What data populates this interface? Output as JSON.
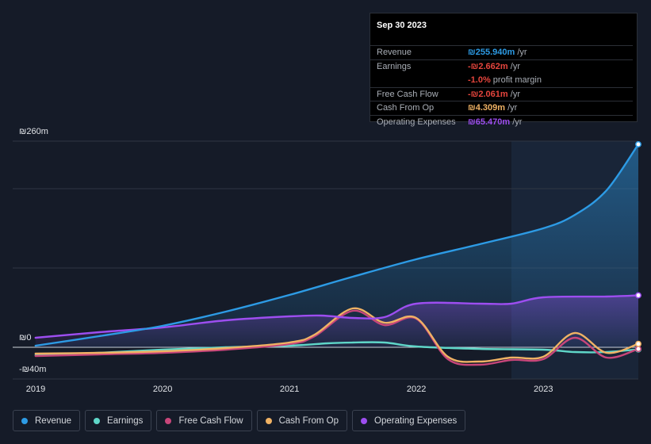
{
  "tooltip": {
    "date": "Sep 30 2023",
    "rows": [
      {
        "label": "Revenue",
        "value": "₪255.940m",
        "unit": " /yr",
        "color": "#2d9be5"
      },
      {
        "label": "Earnings",
        "value": "-₪2.662m",
        "unit": " /yr",
        "color": "#e5453d"
      },
      {
        "label": "",
        "value": "-1.0%",
        "unit": " profit margin",
        "color": "#e5453d"
      },
      {
        "label": "Free Cash Flow",
        "value": "-₪2.061m",
        "unit": " /yr",
        "color": "#e5453d"
      },
      {
        "label": "Cash From Op",
        "value": "₪4.309m",
        "unit": " /yr",
        "color": "#f0b264"
      },
      {
        "label": "Operating Expenses",
        "value": "₪65.470m",
        "unit": " /yr",
        "color": "#9d4ef0"
      }
    ]
  },
  "colors": {
    "background": "#151b28",
    "revenue": "#2d9be5",
    "earnings": "#5fd6c8",
    "free_cash_flow": "#c8467a",
    "cash_from_op": "#f0b264",
    "operating_expenses": "#9d4ef0"
  },
  "chart_data": {
    "type": "line",
    "y_tick_labels": [
      "₪260m",
      "₪0",
      "-₪40m"
    ],
    "ylim": [
      -40,
      260
    ],
    "x_tick_labels": [
      "2019",
      "2020",
      "2021",
      "2022",
      "2023"
    ],
    "x_tick_values": [
      2019.0,
      2020.0,
      2021.0,
      2022.0,
      2023.0
    ],
    "xlim": [
      2018.82,
      2023.75
    ],
    "highlight_start": 2022.75,
    "series": [
      {
        "name": "Revenue",
        "key": "revenue",
        "x": [
          2019.0,
          2019.5,
          2020.0,
          2020.5,
          2021.0,
          2021.5,
          2022.0,
          2022.5,
          2023.0,
          2023.25,
          2023.5,
          2023.75
        ],
        "y": [
          2,
          14,
          27,
          45,
          66,
          89,
          111,
          130,
          150,
          167,
          198,
          256
        ]
      },
      {
        "name": "Earnings",
        "key": "earnings",
        "x": [
          2019.0,
          2019.5,
          2020.0,
          2020.5,
          2021.0,
          2021.3,
          2021.5,
          2021.75,
          2022.0,
          2022.5,
          2023.0,
          2023.25,
          2023.5,
          2023.75
        ],
        "y": [
          -10,
          -7,
          -3,
          0,
          2,
          5,
          6,
          6,
          1,
          -2,
          -3,
          -6,
          -6,
          -2.7
        ]
      },
      {
        "name": "Free Cash Flow",
        "key": "free_cash_flow",
        "x": [
          2019.0,
          2019.5,
          2020.0,
          2020.5,
          2021.0,
          2021.2,
          2021.5,
          2021.75,
          2022.0,
          2022.25,
          2022.5,
          2022.75,
          2023.0,
          2023.25,
          2023.5,
          2023.75
        ],
        "y": [
          -11,
          -9,
          -7,
          -3,
          4,
          14,
          46,
          28,
          36,
          -15,
          -22,
          -16,
          -15,
          12,
          -13,
          -2.1
        ]
      },
      {
        "name": "Cash From Op",
        "key": "cash_from_op",
        "x": [
          2019.0,
          2019.5,
          2020.0,
          2020.5,
          2021.0,
          2021.2,
          2021.5,
          2021.75,
          2022.0,
          2022.25,
          2022.5,
          2022.75,
          2023.0,
          2023.25,
          2023.5,
          2023.75
        ],
        "y": [
          -8,
          -7,
          -5,
          -1,
          6,
          16,
          49,
          31,
          37,
          -12,
          -18,
          -13,
          -12,
          18,
          -7,
          4.3
        ]
      },
      {
        "name": "Operating Expenses",
        "key": "operating_expenses",
        "x": [
          2019.0,
          2019.5,
          2020.0,
          2020.5,
          2021.0,
          2021.25,
          2021.5,
          2021.75,
          2022.0,
          2022.5,
          2022.75,
          2023.0,
          2023.5,
          2023.75
        ],
        "y": [
          12,
          19,
          25,
          34,
          39,
          40,
          37,
          38,
          55,
          55,
          55,
          63,
          64,
          65.5
        ]
      }
    ]
  },
  "legend": [
    {
      "label": "Revenue",
      "color": "#2d9be5"
    },
    {
      "label": "Earnings",
      "color": "#5fd6c8"
    },
    {
      "label": "Free Cash Flow",
      "color": "#c8467a"
    },
    {
      "label": "Cash From Op",
      "color": "#f0b264"
    },
    {
      "label": "Operating Expenses",
      "color": "#9d4ef0"
    }
  ]
}
